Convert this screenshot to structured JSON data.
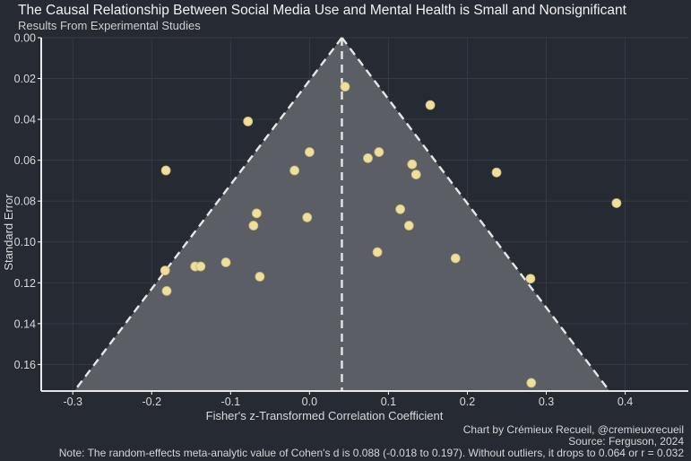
{
  "header": {
    "title": "The Causal Relationship Between Social Media Use and Mental Health is Small and Nonsignificant",
    "subtitle": "Results From Experimental Studies"
  },
  "footer": {
    "credit": "Chart by Crémieux Recueil, @cremieuxrecueil",
    "source": "Source: Ferguson, 2024",
    "note": "Note: The random-effects meta-analytic value of Cohen's d is 0.088 (-0.018 to 0.197). Without outliers, it drops to 0.064 or r = 0.032"
  },
  "colors": {
    "background": "#252a33",
    "funnel_fill": "#5e6268",
    "funnel_line": "#e6e6e6",
    "points": "#eedf9c",
    "axis": "#ffffff",
    "grid": "#353a43"
  },
  "chart_data": {
    "type": "scatter",
    "chart_subtype": "funnel plot",
    "xlabel": "Fisher's z-Transformed Correlation Coefficient",
    "ylabel": "Standard Error",
    "xlim": [
      -0.34,
      0.48
    ],
    "ylim": [
      0.173,
      0.0
    ],
    "y_axis_inverted": true,
    "x_ticks": [
      -0.3,
      -0.2,
      -0.1,
      0.0,
      0.1,
      0.2,
      0.3,
      0.4
    ],
    "x_tick_labels": [
      "-0.3",
      "-0.2",
      "-0.1",
      "0.0",
      "0.1",
      "0.2",
      "0.3",
      "0.4"
    ],
    "y_ticks": [
      0.0,
      0.02,
      0.04,
      0.06,
      0.08,
      0.1,
      0.12,
      0.14,
      0.16
    ],
    "y_tick_labels": [
      "0.00",
      "0.02",
      "0.04",
      "0.06",
      "0.08",
      "0.10",
      "0.12",
      "0.14",
      "0.16"
    ],
    "grid": true,
    "pooled_estimate_z": 0.041,
    "funnel_multiplier": 1.96,
    "points": [
      {
        "x": 0.045,
        "y": 0.024
      },
      {
        "x": 0.153,
        "y": 0.033
      },
      {
        "x": -0.078,
        "y": 0.041
      },
      {
        "x": 0.0,
        "y": 0.056
      },
      {
        "x": 0.088,
        "y": 0.056
      },
      {
        "x": 0.074,
        "y": 0.059
      },
      {
        "x": 0.13,
        "y": 0.062
      },
      {
        "x": -0.182,
        "y": 0.065
      },
      {
        "x": -0.019,
        "y": 0.065
      },
      {
        "x": 0.237,
        "y": 0.066
      },
      {
        "x": 0.135,
        "y": 0.067
      },
      {
        "x": 0.389,
        "y": 0.081
      },
      {
        "x": 0.115,
        "y": 0.084
      },
      {
        "x": -0.067,
        "y": 0.086
      },
      {
        "x": -0.003,
        "y": 0.088
      },
      {
        "x": -0.071,
        "y": 0.092
      },
      {
        "x": 0.126,
        "y": 0.092
      },
      {
        "x": 0.086,
        "y": 0.105
      },
      {
        "x": 0.185,
        "y": 0.108
      },
      {
        "x": -0.106,
        "y": 0.11
      },
      {
        "x": -0.145,
        "y": 0.112
      },
      {
        "x": -0.138,
        "y": 0.112
      },
      {
        "x": -0.183,
        "y": 0.114
      },
      {
        "x": -0.063,
        "y": 0.117
      },
      {
        "x": 0.28,
        "y": 0.118
      },
      {
        "x": -0.181,
        "y": 0.124
      },
      {
        "x": 0.281,
        "y": 0.169
      }
    ]
  }
}
